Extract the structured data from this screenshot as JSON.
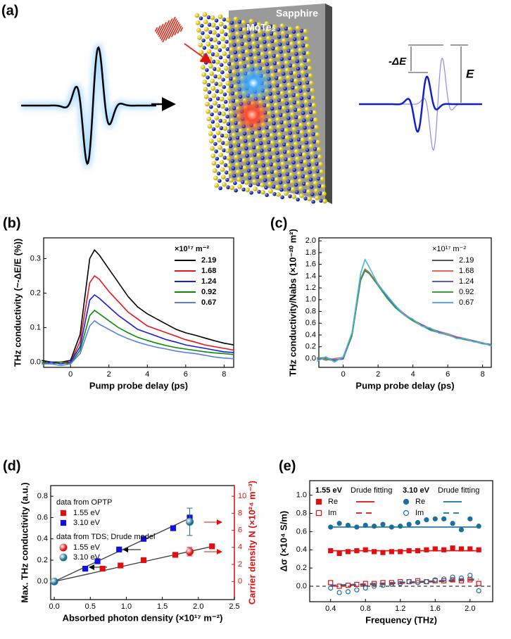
{
  "panel_a": {
    "label": "(a)",
    "substrate": "Sapphire",
    "material": "MoTe₂",
    "delta_label": "-ΔE",
    "field_label": "E"
  },
  "chart_data": [
    {
      "type": "line",
      "panel_label": "(b)",
      "xlabel": "Pump probe delay (ps)",
      "ylabel": "THz conductivity (~-ΔE/E (%))",
      "xlim": [
        -1.4,
        8.5
      ],
      "ylim": [
        -0.015,
        0.36
      ],
      "xticks": [
        0,
        2,
        4,
        6,
        8
      ],
      "yticks": [
        {
          "value": 0,
          "label": "0.0"
        },
        {
          "value": 0.1,
          "label": "0.1"
        },
        {
          "value": 0.2,
          "label": "0.2"
        },
        {
          "value": 0.3,
          "label": "0.3"
        }
      ],
      "legend_title": "×10¹⁷ m⁻²",
      "legend": "upper right",
      "x": [
        -1.5,
        -1,
        -0.5,
        0,
        0.5,
        1,
        1.25,
        1.5,
        2,
        2.5,
        3,
        3.5,
        4,
        4.5,
        5,
        5.5,
        6,
        6.5,
        7,
        7.5,
        8,
        8.5
      ],
      "series": [
        {
          "name": "2.19",
          "color": "#000000",
          "values": [
            0.005,
            0.0,
            0.0,
            0.005,
            0.08,
            0.3,
            0.325,
            0.31,
            0.27,
            0.23,
            0.19,
            0.16,
            0.14,
            0.125,
            0.11,
            0.095,
            0.085,
            0.078,
            0.07,
            0.062,
            0.055,
            0.05
          ]
        },
        {
          "name": "1.68",
          "color": "#e8141e",
          "values": [
            0.0,
            -0.005,
            0.0,
            0.0,
            0.06,
            0.23,
            0.25,
            0.24,
            0.205,
            0.175,
            0.145,
            0.125,
            0.105,
            0.095,
            0.085,
            0.075,
            0.065,
            0.058,
            0.05,
            0.045,
            0.04,
            0.035
          ]
        },
        {
          "name": "1.24",
          "color": "#1a1ae6",
          "values": [
            -0.005,
            0.0,
            -0.005,
            0.0,
            0.045,
            0.18,
            0.195,
            0.185,
            0.16,
            0.135,
            0.115,
            0.095,
            0.085,
            0.075,
            0.065,
            0.058,
            0.05,
            0.045,
            0.04,
            0.035,
            0.03,
            0.028
          ]
        },
        {
          "name": "0.92",
          "color": "#0a8a0a",
          "values": [
            0.0,
            -0.005,
            0.0,
            -0.005,
            0.035,
            0.135,
            0.15,
            0.14,
            0.12,
            0.1,
            0.085,
            0.072,
            0.063,
            0.055,
            0.048,
            0.042,
            0.038,
            0.034,
            0.03,
            0.027,
            0.025,
            0.022
          ]
        },
        {
          "name": "0.67",
          "color": "#5a7ee8",
          "values": [
            -0.005,
            -0.005,
            -0.01,
            -0.005,
            0.025,
            0.105,
            0.12,
            0.11,
            0.095,
            0.08,
            0.068,
            0.058,
            0.05,
            0.043,
            0.038,
            0.032,
            0.028,
            0.025,
            0.02,
            0.015,
            0.012,
            0.01
          ]
        }
      ]
    },
    {
      "type": "line",
      "panel_label": "(c)",
      "xlabel": "Pump probe delay (ps)",
      "ylabel": "THz conductivity/Nabs (×10⁻²⁰ m²)",
      "xlim": [
        -1.4,
        8.5
      ],
      "ylim": [
        -0.15,
        2.05
      ],
      "xticks": [
        0,
        2,
        4,
        6,
        8
      ],
      "yticks": [
        {
          "value": 0,
          "label": "0.0"
        },
        {
          "value": 0.2,
          "label": "0.2"
        },
        {
          "value": 0.4,
          "label": "0.4"
        },
        {
          "value": 0.6,
          "label": "0.6"
        },
        {
          "value": 0.8,
          "label": "0.8"
        },
        {
          "value": 1,
          "label": "1.0"
        },
        {
          "value": 1.2,
          "label": "1.2"
        },
        {
          "value": 1.4,
          "label": "1.4"
        },
        {
          "value": 1.6,
          "label": "1.6"
        },
        {
          "value": 1.8,
          "label": "1.8"
        },
        {
          "value": 2,
          "label": "2.0"
        }
      ],
      "legend_title": "×10¹⁷ m⁻²",
      "legend": "upper right",
      "x": [
        -1.5,
        -1,
        -0.5,
        0,
        0.5,
        1,
        1.25,
        1.5,
        2,
        2.5,
        3,
        3.5,
        4,
        4.5,
        5,
        5.5,
        6,
        6.5,
        7,
        7.5,
        8,
        8.5
      ],
      "series": [
        {
          "name": "2.19",
          "color": "#555555",
          "values": [
            0.0,
            0.02,
            -0.03,
            0.0,
            0.38,
            1.33,
            1.49,
            1.44,
            1.24,
            1.04,
            0.87,
            0.74,
            0.64,
            0.56,
            0.49,
            0.44,
            0.4,
            0.36,
            0.32,
            0.29,
            0.26,
            0.23
          ]
        },
        {
          "name": "1.68",
          "color": "#f06060",
          "values": [
            0.02,
            -0.03,
            0.0,
            0.02,
            0.42,
            1.36,
            1.52,
            1.46,
            1.27,
            1.06,
            0.89,
            0.76,
            0.66,
            0.58,
            0.51,
            0.46,
            0.42,
            0.37,
            0.34,
            0.3,
            0.27,
            0.22
          ]
        },
        {
          "name": "1.24",
          "color": "#5b5bd6",
          "values": [
            -0.02,
            0.01,
            -0.02,
            -0.01,
            0.41,
            1.34,
            1.5,
            1.44,
            1.25,
            1.05,
            0.88,
            0.75,
            0.65,
            0.57,
            0.5,
            0.45,
            0.4,
            0.36,
            0.33,
            0.3,
            0.26,
            0.24
          ]
        },
        {
          "name": "0.92",
          "color": "#3aa03a",
          "values": [
            0.01,
            -0.01,
            -0.04,
            0.01,
            0.39,
            1.35,
            1.51,
            1.45,
            1.24,
            1.03,
            0.86,
            0.74,
            0.64,
            0.56,
            0.48,
            0.44,
            0.4,
            0.35,
            0.32,
            0.29,
            0.25,
            0.23
          ]
        },
        {
          "name": "0.67",
          "color": "#4fb0ef",
          "values": [
            -0.05,
            0.03,
            -0.06,
            0.03,
            0.44,
            1.45,
            1.68,
            1.55,
            1.26,
            1.08,
            0.9,
            0.74,
            0.67,
            0.55,
            0.52,
            0.43,
            0.41,
            0.34,
            0.34,
            0.28,
            0.27,
            0.21
          ]
        }
      ]
    },
    {
      "type": "scatter",
      "panel_label": "(d)",
      "xlabel": "Absorbed photon density (×10¹⁷ m⁻²)",
      "ylabel": "Max. THz conductivity (a.u.)",
      "y2label": "Carrier density N (×10²⁴ m⁻³)",
      "xlim": [
        -0.05,
        2.5
      ],
      "ylim": [
        -0.17,
        0.9
      ],
      "y2lim": [
        -2.125,
        11.25
      ],
      "xticks": [
        {
          "value": 0,
          "label": "0.0"
        },
        {
          "value": 0.5,
          "label": "0.5"
        },
        {
          "value": 1,
          "label": "1.0"
        },
        {
          "value": 1.5,
          "label": "1.5"
        },
        {
          "value": 2,
          "label": "2.0"
        },
        {
          "value": 2.5,
          "label": "2.5"
        }
      ],
      "yticks": [
        {
          "value": 0,
          "label": "0.0"
        },
        {
          "value": 0.2,
          "label": "0.2"
        },
        {
          "value": 0.4,
          "label": "0.4"
        },
        {
          "value": 0.6,
          "label": "0.6"
        },
        {
          "value": 0.8,
          "label": "0.8"
        }
      ],
      "y2ticks": [
        0,
        2,
        4,
        6,
        8,
        10
      ],
      "y2color": "#e01010",
      "fit_color": "#444444",
      "fits": [
        {
          "x": [
            0,
            1.9
          ],
          "values": [
            0,
            0.6
          ]
        },
        {
          "x": [
            0,
            2.2
          ],
          "values": [
            0,
            0.33
          ]
        }
      ],
      "groups": [
        {
          "title": "data from OPTP",
          "series": [
            {
              "name": "1.55 eV",
              "marker": "square",
              "color": "#e01010",
              "x": [
                0.67,
                0.92,
                1.24,
                1.68,
                2.19
              ],
              "values": [
                0.12,
                0.15,
                0.2,
                0.25,
                0.33
              ]
            },
            {
              "name": "3.10 eV",
              "marker": "square",
              "color": "#1010e0",
              "x": [
                0.43,
                0.6,
                0.9,
                1.24,
                1.65,
                1.88
              ],
              "values": [
                0.12,
                0.19,
                0.3,
                0.4,
                0.5,
                0.6
              ]
            }
          ]
        },
        {
          "title": "data from TDS; Drude model",
          "series": [
            {
              "name": "1.55 eV",
              "marker": "sphere",
              "color": "#e01010",
              "axis": "y2",
              "x": [
                1.88
              ],
              "values": [
                3.5
              ],
              "errors": [
                0.5
              ]
            },
            {
              "name": "3.10 eV",
              "marker": "sphere",
              "color": "#1a6f8f",
              "axis": "y2",
              "x": [
                0,
                1.88
              ],
              "values": [
                0,
                7.0
              ],
              "errors": [
                0,
                1.6
              ]
            }
          ]
        }
      ]
    },
    {
      "type": "scatter",
      "panel_label": "(e)",
      "xlabel": "Frequency (THz)",
      "ylabel": "Δσ (×10⁴ S/m)",
      "xlim": [
        0.16,
        2.26
      ],
      "ylim": [
        -0.17,
        1.16
      ],
      "xticks": [
        {
          "value": 0.4,
          "label": "0.4"
        },
        {
          "value": 0.8,
          "label": "0.8"
        },
        {
          "value": 1.2,
          "label": "1.2"
        },
        {
          "value": 1.6,
          "label": "1.6"
        },
        {
          "value": 2,
          "label": "2.0"
        }
      ],
      "yticks": [
        {
          "value": 0,
          "label": "0.0"
        },
        {
          "value": 0.2,
          "label": "0.2"
        },
        {
          "value": 0.4,
          "label": "0.4"
        },
        {
          "value": 0.6,
          "label": "0.6"
        },
        {
          "value": 0.8,
          "label": "0.8"
        },
        {
          "value": 1,
          "label": "1.0"
        }
      ],
      "hline": 0,
      "groups": [
        {
          "title": "1.55 eV",
          "fit_label": "Drude fitting",
          "series": [
            {
              "name": "Re",
              "marker": "square",
              "filled": true,
              "color": "#e01010",
              "x": [
                0.4,
                0.5,
                0.6,
                0.7,
                0.8,
                0.9,
                1.0,
                1.1,
                1.2,
                1.3,
                1.4,
                1.5,
                1.6,
                1.7,
                1.8,
                1.9,
                2.0,
                2.1
              ],
              "values": [
                0.39,
                0.36,
                0.38,
                0.39,
                0.4,
                0.38,
                0.37,
                0.38,
                0.38,
                0.39,
                0.39,
                0.4,
                0.41,
                0.4,
                0.42,
                0.41,
                0.41,
                0.4
              ],
              "fit": {
                "x": [
                  0.4,
                  2.1
                ],
                "values": [
                  0.39,
                  0.39
                ],
                "dashed": false
              }
            },
            {
              "name": "Im",
              "marker": "square",
              "filled": false,
              "color": "#e01010",
              "x": [
                0.4,
                0.5,
                0.6,
                0.7,
                0.8,
                0.9,
                1.0,
                1.1,
                1.2,
                1.3,
                1.4,
                1.5,
                1.6,
                1.7,
                1.8,
                1.9,
                2.0,
                2.1
              ],
              "values": [
                0.04,
                0.0,
                0.01,
                0.02,
                0.03,
                0.03,
                0.04,
                0.04,
                0.05,
                0.05,
                0.06,
                0.05,
                0.06,
                0.06,
                0.07,
                0.06,
                0.07,
                0.03
              ],
              "fit": {
                "x": [
                  0.4,
                  2.1
                ],
                "values": [
                  0.0,
                  0.07
                ],
                "dashed": true
              }
            }
          ]
        },
        {
          "title": "3.10 eV",
          "fit_label": "Drude fitting",
          "series": [
            {
              "name": "Re",
              "marker": "circle",
              "filled": true,
              "color": "#1a6f9f",
              "x": [
                0.4,
                0.5,
                0.6,
                0.7,
                0.8,
                0.9,
                1.0,
                1.1,
                1.2,
                1.3,
                1.4,
                1.5,
                1.6,
                1.7,
                1.8,
                1.9,
                2.0,
                2.1
              ],
              "values": [
                0.65,
                0.69,
                0.67,
                0.65,
                0.67,
                0.66,
                0.68,
                0.65,
                0.66,
                0.68,
                0.7,
                0.73,
                0.74,
                0.74,
                0.69,
                0.62,
                0.74,
                0.66
              ],
              "fit": {
                "x": [
                  0.4,
                  2.1
                ],
                "values": [
                  0.65,
                  0.65
                ],
                "dashed": false
              }
            },
            {
              "name": "Im",
              "marker": "circle",
              "filled": false,
              "color": "#1a6f9f",
              "x": [
                0.4,
                0.5,
                0.6,
                0.7,
                0.8,
                0.9,
                1.0,
                1.1,
                1.2,
                1.3,
                1.4,
                1.5,
                1.6,
                1.7,
                1.8,
                1.9,
                2.0,
                2.1
              ],
              "values": [
                -0.02,
                -0.07,
                -0.06,
                -0.04,
                -0.02,
                0.0,
                0.01,
                0.02,
                0.03,
                0.05,
                0.04,
                0.05,
                0.07,
                0.08,
                0.1,
                0.09,
                0.12,
                -0.05
              ],
              "fit": {
                "x": [
                  0.4,
                  2.1
                ],
                "values": [
                  0.01,
                  0.08
                ],
                "dashed": true
              }
            }
          ]
        }
      ]
    }
  ]
}
